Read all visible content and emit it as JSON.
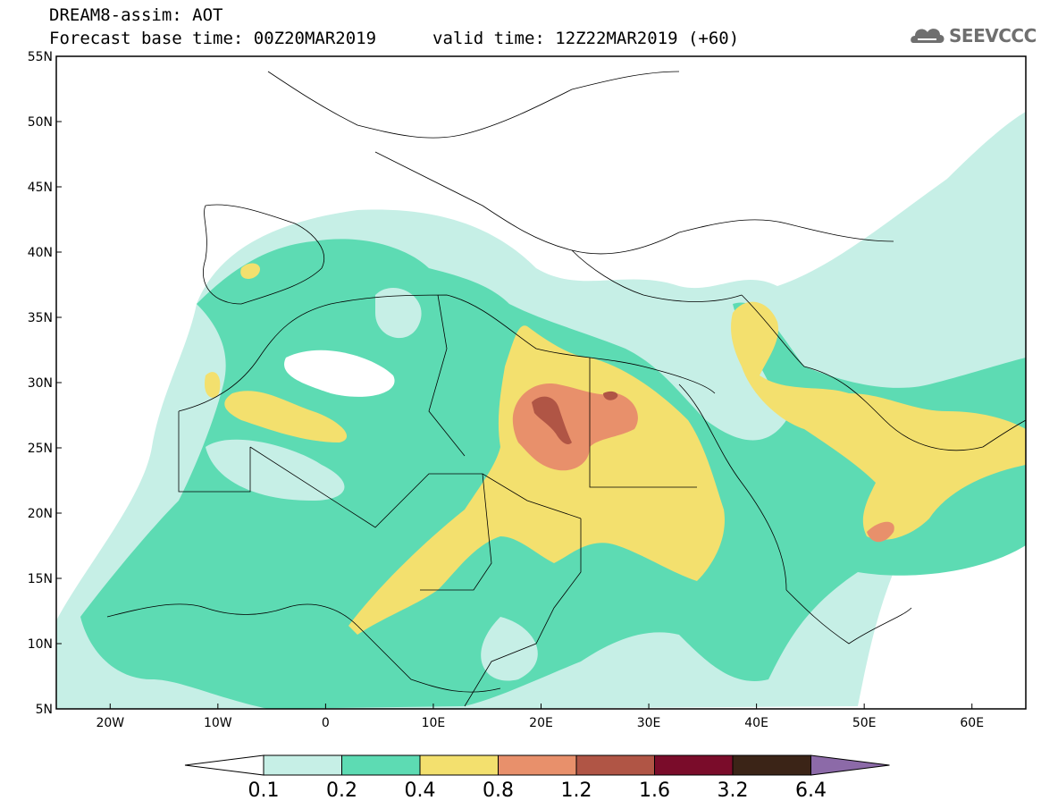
{
  "header": {
    "title": "DREAM8-assim: AOT",
    "base_time": "Forecast base time: 00Z20MAR2019",
    "valid_time": "valid time: 12Z22MAR2019 (+60)"
  },
  "logo": {
    "text": "SEEVCCC",
    "icon": "cloud-logo-icon"
  },
  "map": {
    "lon_range": [
      -25,
      65
    ],
    "lat_range": [
      5,
      55
    ],
    "lat_ticks": [
      "5N",
      "10N",
      "15N",
      "20N",
      "25N",
      "30N",
      "35N",
      "40N",
      "45N",
      "50N",
      "55N"
    ],
    "lon_ticks": [
      "20W",
      "10W",
      "0",
      "10E",
      "20E",
      "30E",
      "40E",
      "50E",
      "60E"
    ]
  },
  "colorbar": {
    "levels": [
      "0.1",
      "0.2",
      "0.4",
      "0.8",
      "1.2",
      "1.6",
      "3.2",
      "6.4"
    ],
    "colors": [
      "#c6efe6",
      "#5ddbb3",
      "#f3e06e",
      "#e8906b",
      "#b05545",
      "#7a0c2a",
      "#3b2417",
      "#8c6aa8"
    ]
  },
  "colors": {
    "c1": "#c6efe6",
    "c2": "#5ddbb3",
    "c3": "#f3e06e",
    "c4": "#e8906b",
    "c5": "#b05545"
  }
}
